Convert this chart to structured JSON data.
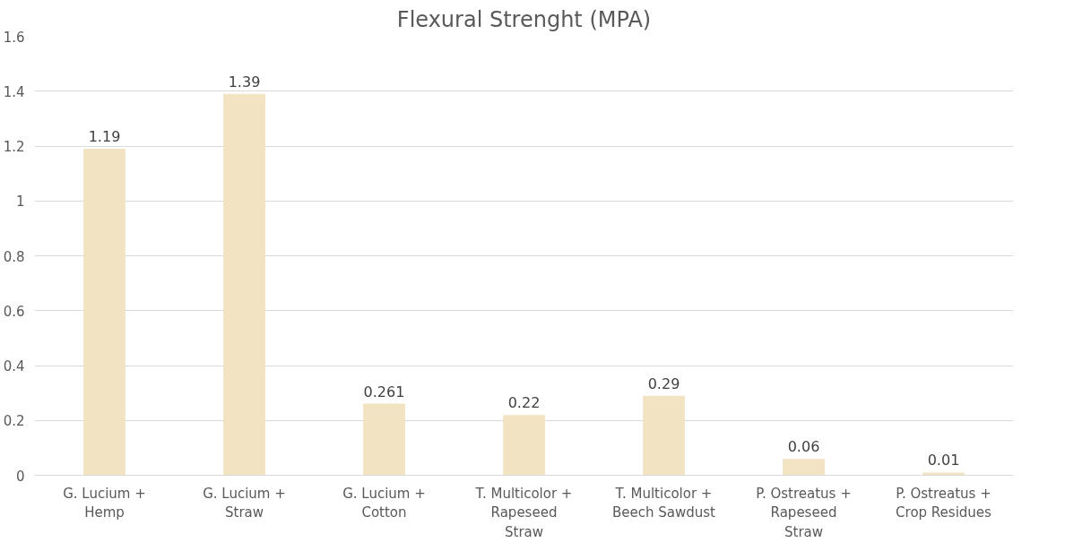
{
  "chart_data": {
    "type": "bar",
    "title": "Flexural Strenght (MPA)",
    "categories": [
      "G. Lucium +\nHemp",
      "G. Lucium +\nStraw",
      "G. Lucium +\nCotton",
      "T. Multicolor +\nRapeseed\nStraw",
      "T. Multicolor +\nBeech Sawdust",
      "P. Ostreatus +\nRapeseed\nStraw",
      "P. Ostreatus +\nCrop Residues"
    ],
    "values": [
      1.19,
      1.39,
      0.261,
      0.22,
      0.29,
      0.06,
      0.01
    ],
    "color": "#f2e3c2",
    "ylim": [
      0,
      1.6
    ],
    "yticks": [
      0,
      0.2,
      0.4,
      0.6,
      0.8,
      1,
      1.2,
      1.4,
      1.6
    ],
    "grid": "y",
    "data_labels": true
  }
}
